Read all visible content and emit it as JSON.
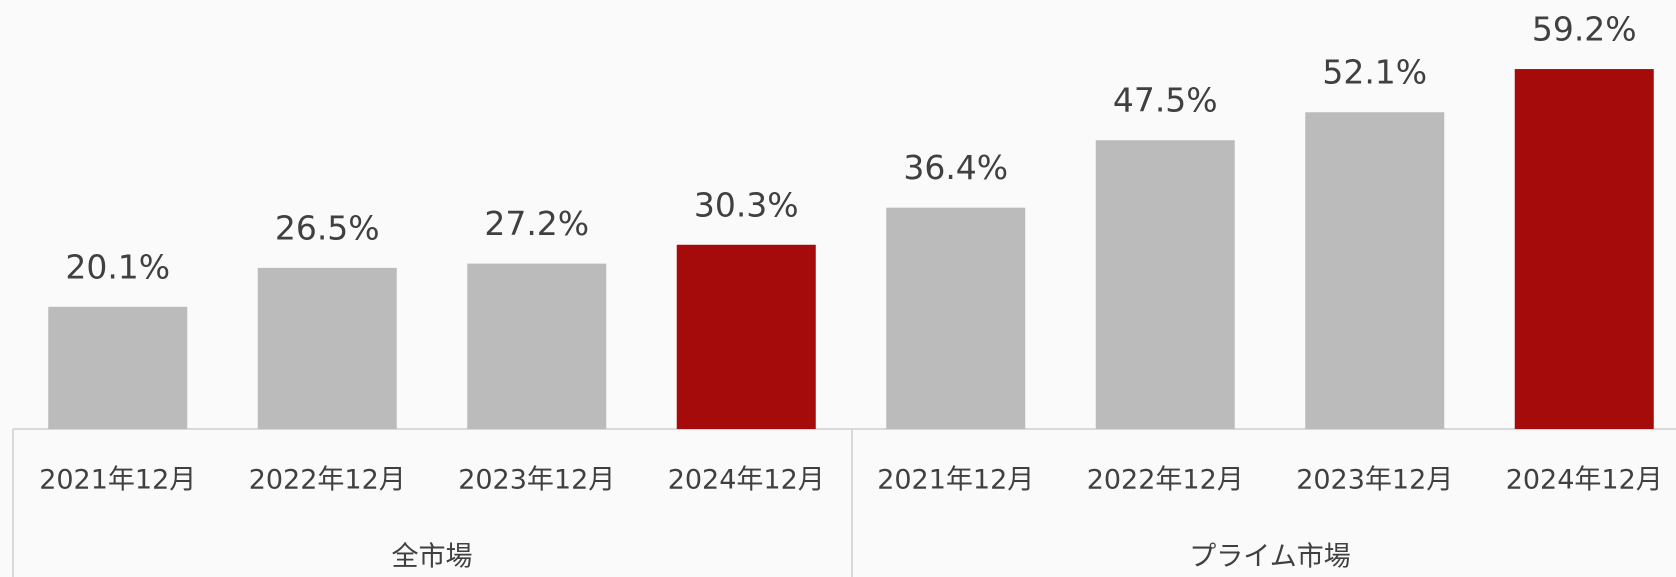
{
  "chart_data": {
    "type": "bar",
    "groups": [
      {
        "name": "全市場",
        "categories": [
          "2021年12月",
          "2022年12月",
          "2023年12月",
          "2024年12月"
        ],
        "values": [
          20.1,
          26.5,
          27.2,
          30.3
        ],
        "value_labels": [
          "20.1%",
          "26.5%",
          "27.2%",
          "30.3%"
        ],
        "colors": [
          "#bbbbbb",
          "#bbbbbb",
          "#bbbbbb",
          "#a50b0b"
        ]
      },
      {
        "name": "プライム市場",
        "categories": [
          "2021年12月",
          "2022年12月",
          "2023年12月",
          "2024年12月"
        ],
        "values": [
          36.4,
          47.5,
          52.1,
          59.2
        ],
        "value_labels": [
          "36.4%",
          "47.5%",
          "52.1%",
          "59.2%"
        ],
        "colors": [
          "#bbbbbb",
          "#bbbbbb",
          "#bbbbbb",
          "#a50b0b"
        ]
      }
    ]
  }
}
